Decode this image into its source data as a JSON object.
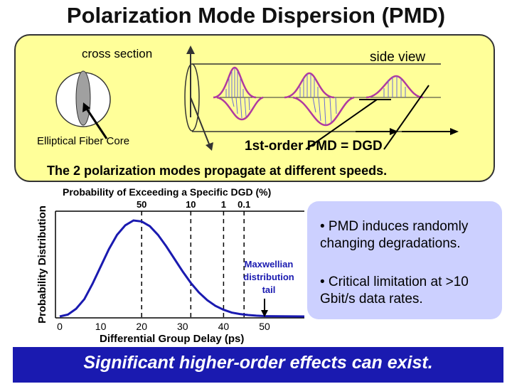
{
  "title": "Polarization Mode Dispersion (PMD)",
  "top": {
    "cross_section_label": "cross section",
    "side_view_label": "side view",
    "core_label": "Elliptical Fiber Core",
    "pmd_label": "1st-order PMD = DGD",
    "modes_label": "The 2 polarization modes propagate at different speeds."
  },
  "chart_data": {
    "type": "line",
    "title": "",
    "top_axis_label": "Probability of Exceeding a Specific DGD (%)",
    "top_ticks": [
      {
        "label": "50",
        "x": 20
      },
      {
        "label": "10",
        "x": 32
      },
      {
        "label": "1",
        "x": 40
      },
      {
        "label": "0.1",
        "x": 45
      }
    ],
    "xlabel": "Differential Group Delay (ps)",
    "ylabel": "Probability Distribution",
    "x_ticks": [
      0,
      10,
      20,
      30,
      40,
      50
    ],
    "xlim": [
      0,
      50
    ],
    "annotation": [
      "Maxwellian",
      "distribution",
      "tail"
    ],
    "series": [
      {
        "x": [
          0,
          2,
          4,
          6,
          8,
          10,
          12,
          14,
          16,
          18,
          20,
          22,
          24,
          26,
          28,
          30,
          32,
          34,
          36,
          38,
          40,
          42,
          44,
          46,
          48,
          50
        ],
        "y": [
          0,
          0.02,
          0.08,
          0.18,
          0.34,
          0.52,
          0.7,
          0.85,
          0.95,
          1.0,
          0.99,
          0.94,
          0.85,
          0.73,
          0.6,
          0.47,
          0.35,
          0.25,
          0.17,
          0.11,
          0.07,
          0.04,
          0.025,
          0.015,
          0.008,
          0.004
        ]
      }
    ]
  },
  "bullets": [
    "• PMD induces randomly changing degradations.",
    "• Critical limitation at >10 Gbit/s data rates."
  ],
  "footer": "Significant higher-order effects can exist."
}
